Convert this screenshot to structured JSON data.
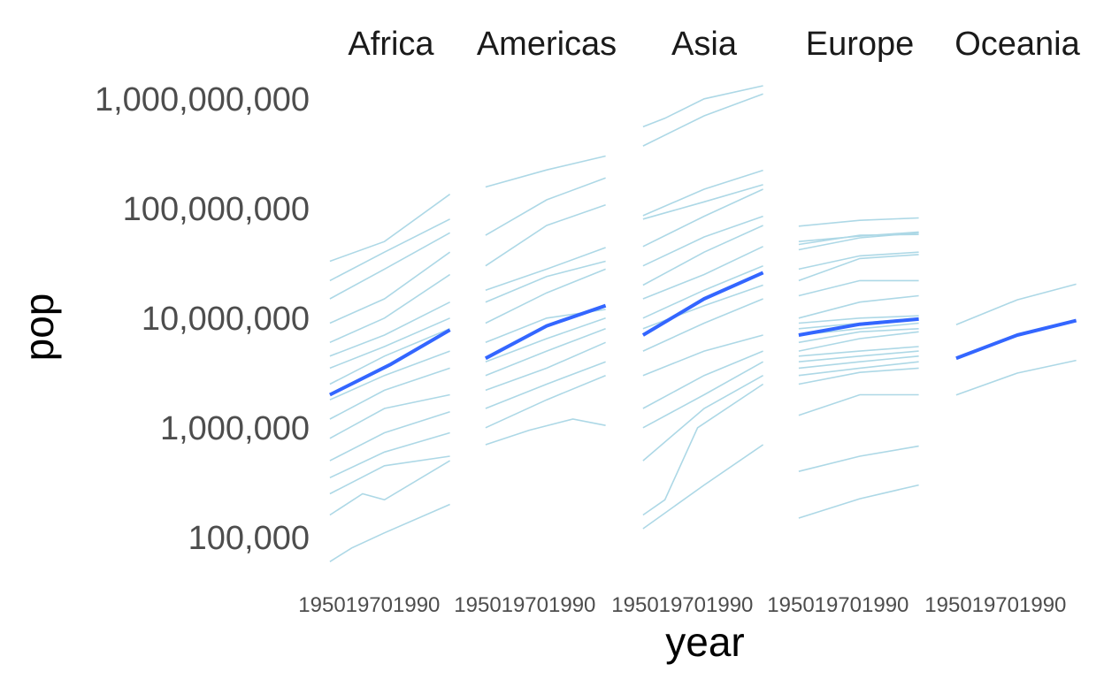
{
  "chart_data": {
    "type": "line",
    "facet_by": "continent",
    "xlabel": "year",
    "ylabel": "pop",
    "y_scale": "log10",
    "ylim": [
      55000,
      1500000000
    ],
    "y_ticks": [
      100000,
      1000000,
      10000000,
      100000000,
      1000000000
    ],
    "y_tick_labels": [
      "100,000",
      "1,000,000",
      "10,000,000",
      "100,000,000",
      "1,000,000,000"
    ],
    "x_ticks": [
      1950,
      1970,
      1990
    ],
    "x_tick_labels": [
      "1950",
      "1970",
      "1990"
    ],
    "grid": false,
    "colors": {
      "country_lines": "#add8e6",
      "smooth": "#3366ff"
    },
    "panels": [
      {
        "facet": "Africa",
        "x_range": [
          1952,
          2007
        ],
        "country_series_approx": [
          [
            [
              1952,
              33000000
            ],
            [
              1977,
              50000000
            ],
            [
              2007,
              135000000
            ]
          ],
          [
            [
              1952,
              22000000
            ],
            [
              1977,
              40000000
            ],
            [
              2007,
              80000000
            ]
          ],
          [
            [
              1952,
              15000000
            ],
            [
              1977,
              28000000
            ],
            [
              2007,
              60000000
            ]
          ],
          [
            [
              1952,
              9000000
            ],
            [
              1977,
              15000000
            ],
            [
              2007,
              40000000
            ]
          ],
          [
            [
              1952,
              6000000
            ],
            [
              1977,
              10000000
            ],
            [
              2007,
              25000000
            ]
          ],
          [
            [
              1952,
              4500000
            ],
            [
              1977,
              7000000
            ],
            [
              2007,
              14000000
            ]
          ],
          [
            [
              1952,
              3500000
            ],
            [
              1977,
              5500000
            ],
            [
              2007,
              10000000
            ]
          ],
          [
            [
              1952,
              2500000
            ],
            [
              1977,
              4500000
            ],
            [
              2007,
              8000000
            ]
          ],
          [
            [
              1952,
              1800000
            ],
            [
              1977,
              3000000
            ],
            [
              2007,
              5000000
            ]
          ],
          [
            [
              1952,
              1200000
            ],
            [
              1977,
              2200000
            ],
            [
              2007,
              3500000
            ]
          ],
          [
            [
              1952,
              800000
            ],
            [
              1977,
              1500000
            ],
            [
              2007,
              2000000
            ]
          ],
          [
            [
              1952,
              500000
            ],
            [
              1977,
              900000
            ],
            [
              2007,
              1400000
            ]
          ],
          [
            [
              1952,
              350000
            ],
            [
              1977,
              600000
            ],
            [
              2007,
              900000
            ]
          ],
          [
            [
              1952,
              250000
            ],
            [
              1977,
              450000
            ],
            [
              2007,
              550000
            ]
          ],
          [
            [
              1952,
              160000
            ],
            [
              1967,
              250000
            ],
            [
              1977,
              220000
            ],
            [
              2007,
              500000
            ]
          ],
          [
            [
              1952,
              60000
            ],
            [
              1962,
              80000
            ],
            [
              1977,
              110000
            ],
            [
              2007,
              200000
            ]
          ]
        ],
        "smooth": [
          [
            1952,
            2000000
          ],
          [
            1980,
            3800000
          ],
          [
            2007,
            7800000
          ]
        ]
      },
      {
        "facet": "Americas",
        "x_range": [
          1952,
          2007
        ],
        "country_series_approx": [
          [
            [
              1952,
              157000000
            ],
            [
              1980,
              225000000
            ],
            [
              2007,
              301000000
            ]
          ],
          [
            [
              1952,
              57000000
            ],
            [
              1980,
              120000000
            ],
            [
              2007,
              190000000
            ]
          ],
          [
            [
              1952,
              30000000
            ],
            [
              1980,
              70000000
            ],
            [
              2007,
              108000000
            ]
          ],
          [
            [
              1952,
              18000000
            ],
            [
              1980,
              28000000
            ],
            [
              2007,
              44000000
            ]
          ],
          [
            [
              1952,
              14000000
            ],
            [
              1980,
              24000000
            ],
            [
              2007,
              33000000
            ]
          ],
          [
            [
              1952,
              9000000
            ],
            [
              1980,
              17000000
            ],
            [
              2007,
              28000000
            ]
          ],
          [
            [
              1952,
              6000000
            ],
            [
              1980,
              10000000
            ],
            [
              2007,
              12000000
            ]
          ],
          [
            [
              1952,
              4000000
            ],
            [
              1980,
              6500000
            ],
            [
              2007,
              10000000
            ]
          ],
          [
            [
              1952,
              3000000
            ],
            [
              1980,
              5000000
            ],
            [
              2007,
              8000000
            ]
          ],
          [
            [
              1952,
              2200000
            ],
            [
              1980,
              3500000
            ],
            [
              2007,
              6000000
            ]
          ],
          [
            [
              1952,
              1500000
            ],
            [
              1980,
              2500000
            ],
            [
              2007,
              4000000
            ]
          ],
          [
            [
              1952,
              1000000
            ],
            [
              1980,
              1800000
            ],
            [
              2007,
              3000000
            ]
          ],
          [
            [
              1952,
              700000
            ],
            [
              1972,
              950000
            ],
            [
              1992,
              1200000
            ],
            [
              2007,
              1050000
            ]
          ]
        ],
        "smooth": [
          [
            1952,
            4300000
          ],
          [
            1980,
            8500000
          ],
          [
            2007,
            13000000
          ]
        ]
      },
      {
        "facet": "Asia",
        "x_range": [
          1952,
          2007
        ],
        "country_series_approx": [
          [
            [
              1952,
              556000000
            ],
            [
              1962,
              665000000
            ],
            [
              1980,
              1000000000
            ],
            [
              2007,
              1318000000
            ]
          ],
          [
            [
              1952,
              372000000
            ],
            [
              1980,
              700000000
            ],
            [
              2007,
              1110000000
            ]
          ],
          [
            [
              1952,
              86000000
            ],
            [
              1980,
              150000000
            ],
            [
              2007,
              223000000
            ]
          ],
          [
            [
              1952,
              80000000
            ],
            [
              1980,
              115000000
            ],
            [
              2007,
              165000000
            ]
          ],
          [
            [
              1952,
              45000000
            ],
            [
              1980,
              85000000
            ],
            [
              2007,
              150000000
            ]
          ],
          [
            [
              1952,
              30000000
            ],
            [
              1980,
              55000000
            ],
            [
              2007,
              85000000
            ]
          ],
          [
            [
              1952,
              20000000
            ],
            [
              1980,
              40000000
            ],
            [
              2007,
              70000000
            ]
          ],
          [
            [
              1952,
              15000000
            ],
            [
              1980,
              25000000
            ],
            [
              2007,
              45000000
            ]
          ],
          [
            [
              1952,
              10000000
            ],
            [
              1980,
              18000000
            ],
            [
              2007,
              30000000
            ]
          ],
          [
            [
              1952,
              8000000
            ],
            [
              1980,
              13000000
            ],
            [
              2007,
              20000000
            ]
          ],
          [
            [
              1952,
              5000000
            ],
            [
              1980,
              9000000
            ],
            [
              2007,
              15000000
            ]
          ],
          [
            [
              1952,
              3000000
            ],
            [
              1980,
              5000000
            ],
            [
              2007,
              7000000
            ]
          ],
          [
            [
              1952,
              1500000
            ],
            [
              1980,
              3000000
            ],
            [
              2007,
              5000000
            ]
          ],
          [
            [
              1952,
              1000000
            ],
            [
              1980,
              2000000
            ],
            [
              2007,
              4000000
            ]
          ],
          [
            [
              1952,
              500000
            ],
            [
              1980,
              1500000
            ],
            [
              2007,
              3000000
            ]
          ],
          [
            [
              1952,
              160000
            ],
            [
              1962,
              220000
            ],
            [
              1977,
              1000000
            ],
            [
              2007,
              2500000
            ]
          ],
          [
            [
              1952,
              120000
            ],
            [
              1980,
              300000
            ],
            [
              2007,
              700000
            ]
          ]
        ],
        "smooth": [
          [
            1952,
            7000000
          ],
          [
            1980,
            15000000
          ],
          [
            2007,
            26000000
          ]
        ]
      },
      {
        "facet": "Europe",
        "x_range": [
          1952,
          2007
        ],
        "country_series_approx": [
          [
            [
              1952,
              69000000
            ],
            [
              1980,
              78000000
            ],
            [
              2007,
              82000000
            ]
          ],
          [
            [
              1952,
              50000000
            ],
            [
              1980,
              56000000
            ],
            [
              2007,
              61000000
            ]
          ],
          [
            [
              1952,
              47000000
            ],
            [
              1980,
              57000000
            ],
            [
              2007,
              58000000
            ]
          ],
          [
            [
              1952,
              42000000
            ],
            [
              1980,
              54000000
            ],
            [
              2007,
              60000000
            ]
          ],
          [
            [
              1952,
              28000000
            ],
            [
              1980,
              37000000
            ],
            [
              2007,
              40000000
            ]
          ],
          [
            [
              1952,
              22000000
            ],
            [
              1980,
              35000000
            ],
            [
              2007,
              38000000
            ]
          ],
          [
            [
              1952,
              16000000
            ],
            [
              1980,
              22000000
            ],
            [
              2007,
              22000000
            ]
          ],
          [
            [
              1952,
              10000000
            ],
            [
              1980,
              14000000
            ],
            [
              2007,
              16000000
            ]
          ],
          [
            [
              1952,
              9000000
            ],
            [
              1980,
              10000000
            ],
            [
              2007,
              10500000
            ]
          ],
          [
            [
              1952,
              8000000
            ],
            [
              1980,
              9000000
            ],
            [
              2007,
              10000000
            ]
          ],
          [
            [
              1952,
              7000000
            ],
            [
              1980,
              8000000
            ],
            [
              2007,
              9000000
            ]
          ],
          [
            [
              1952,
              6000000
            ],
            [
              1980,
              7500000
            ],
            [
              2007,
              8000000
            ]
          ],
          [
            [
              1952,
              5000000
            ],
            [
              1980,
              6500000
            ],
            [
              2007,
              7500000
            ]
          ],
          [
            [
              1952,
              4500000
            ],
            [
              1980,
              5000000
            ],
            [
              2007,
              5500000
            ]
          ],
          [
            [
              1952,
              4000000
            ],
            [
              1980,
              4500000
            ],
            [
              2007,
              5000000
            ]
          ],
          [
            [
              1952,
              3500000
            ],
            [
              1980,
              4000000
            ],
            [
              2007,
              4500000
            ]
          ],
          [
            [
              1952,
              3000000
            ],
            [
              1980,
              3500000
            ],
            [
              2007,
              4000000
            ]
          ],
          [
            [
              1952,
              2500000
            ],
            [
              1980,
              3200000
            ],
            [
              2007,
              3500000
            ]
          ],
          [
            [
              1952,
              1300000
            ],
            [
              1980,
              2000000
            ],
            [
              2007,
              2000000
            ]
          ],
          [
            [
              1952,
              400000
            ],
            [
              1980,
              550000
            ],
            [
              2007,
              680000
            ]
          ],
          [
            [
              1952,
              150000
            ],
            [
              1980,
              225000
            ],
            [
              2007,
              300000
            ]
          ]
        ],
        "smooth": [
          [
            1952,
            7000000
          ],
          [
            1980,
            8800000
          ],
          [
            2007,
            9800000
          ]
        ]
      },
      {
        "facet": "Oceania",
        "x_range": [
          1952,
          2007
        ],
        "country_series_approx": [
          [
            [
              1952,
              8700000
            ],
            [
              1980,
              14700000
            ],
            [
              2007,
              20400000
            ]
          ],
          [
            [
              1952,
              1990000
            ],
            [
              1980,
              3150000
            ],
            [
              2007,
              4115000
            ]
          ]
        ],
        "smooth": [
          [
            1952,
            4300000
          ],
          [
            1980,
            7000000
          ],
          [
            2007,
            9500000
          ]
        ]
      }
    ]
  }
}
